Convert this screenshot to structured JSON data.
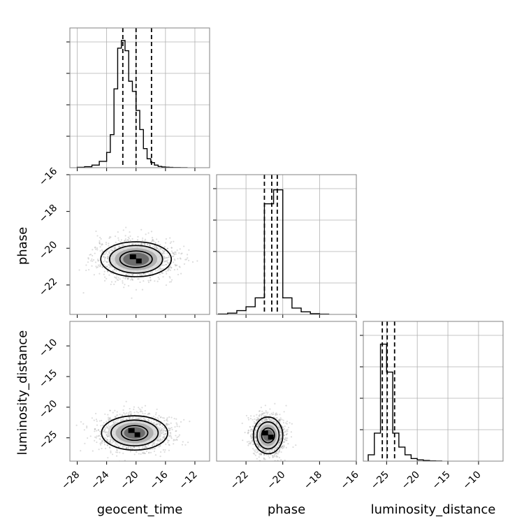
{
  "chart_data": {
    "type": "corner",
    "parameters": [
      "geocent_time",
      "phase",
      "luminosity_distance"
    ],
    "grid": true,
    "axis_ranges": {
      "geocent_time": [
        -29,
        -10
      ],
      "phase": [
        -23.6,
        -16
      ],
      "luminosity_distance": [
        -28.8,
        -6
      ]
    },
    "x_ticks": {
      "geocent_time": [
        -28,
        -24,
        -20,
        -16,
        -12
      ],
      "phase": [
        -22,
        -20,
        -18,
        -16
      ],
      "luminosity_distance": [
        -25,
        -20,
        -15,
        -10
      ]
    },
    "y_ticks": {
      "phase": [
        -16,
        -18,
        -20,
        -22
      ],
      "luminosity_distance": [
        -10,
        -15,
        -20,
        -25
      ]
    },
    "marginals": [
      {
        "param": "geocent_time",
        "bin_edges": [
          -28,
          -27,
          -26,
          -25,
          -24,
          -23.5,
          -23,
          -22.5,
          -22,
          -21.5,
          -21,
          -20.5,
          -20,
          -19.5,
          -19,
          -18.5,
          -18,
          -17.5,
          -17,
          -16.5,
          -16,
          -15.5,
          -15,
          -14.5,
          -14,
          -13
        ],
        "counts": [
          0.003,
          0.008,
          0.02,
          0.05,
          0.12,
          0.26,
          0.62,
          0.94,
          1.0,
          0.92,
          0.68,
          0.6,
          0.45,
          0.3,
          0.15,
          0.07,
          0.04,
          0.02,
          0.01,
          0.006,
          0.004,
          0.002,
          0.001,
          0.001,
          0.0
        ],
        "quantiles": [
          -21.8,
          -20.0,
          -17.9
        ]
      },
      {
        "param": "phase",
        "bin_edges": [
          -23.5,
          -23,
          -22.5,
          -22,
          -21.5,
          -21,
          -20.5,
          -20,
          -19.5,
          -19,
          -18.5,
          -18,
          -17.5
        ],
        "counts": [
          0.003,
          0.01,
          0.03,
          0.06,
          0.13,
          0.87,
          0.98,
          0.13,
          0.05,
          0.02,
          0.006,
          0.002
        ],
        "quantiles": [
          -21.0,
          -20.6,
          -20.3
        ]
      },
      {
        "param": "luminosity_distance",
        "bin_edges": [
          -28,
          -27,
          -26,
          -25,
          -24,
          -23,
          -22,
          -21,
          -20,
          -19,
          -18,
          -17,
          -16
        ],
        "counts": [
          0.05,
          0.22,
          0.92,
          0.7,
          0.22,
          0.11,
          0.05,
          0.02,
          0.01,
          0.005,
          0.002,
          0.001
        ],
        "quantiles": [
          -25.7,
          -24.9,
          -23.7
        ]
      }
    ],
    "joint": [
      {
        "x": "geocent_time",
        "y": "phase",
        "center": [
          -20.0,
          -20.6
        ],
        "contours": [
          {
            "rx": 2.2,
            "ry": 0.45
          },
          {
            "rx": 3.6,
            "ry": 0.75
          },
          {
            "rx": 4.8,
            "ry": 0.95
          }
        ]
      },
      {
        "x": "geocent_time",
        "y": "luminosity_distance",
        "center": [
          -20.2,
          -24.2
        ],
        "contours": [
          {
            "rx": 1.8,
            "ry": 1.2
          },
          {
            "rx": 3.2,
            "ry": 2.1
          },
          {
            "rx": 4.5,
            "ry": 2.8
          }
        ]
      },
      {
        "x": "phase",
        "y": "luminosity_distance",
        "center": [
          -20.8,
          -24.6
        ],
        "contours": [
          {
            "rx": 0.35,
            "ry": 1.2
          },
          {
            "rx": 0.6,
            "ry": 2.2
          },
          {
            "rx": 0.8,
            "ry": 3.0
          }
        ]
      }
    ],
    "colors": {
      "line": "#000000",
      "grid": "#b0b0b0",
      "scatter": "#9e9e9e",
      "frame": "#808080"
    }
  }
}
